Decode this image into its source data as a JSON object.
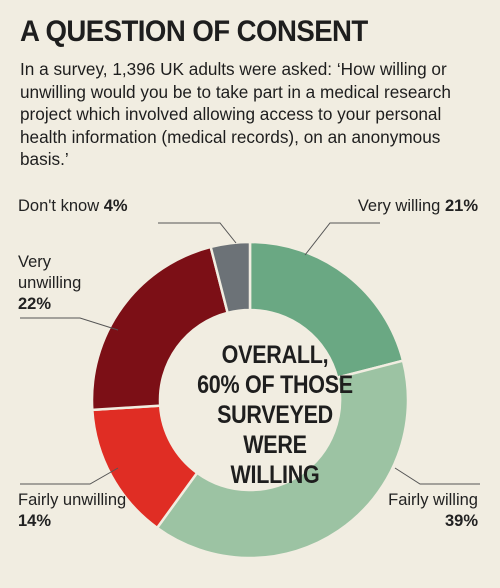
{
  "title": "A QUESTION OF CONSENT",
  "subtitle": "In a survey, 1,396 UK adults were asked: ‘How willing or unwilling would you be to take part in a medical research project which involved allowing access to your personal health information (medical records), on an anonymous basis.’",
  "center": {
    "line1": "OVERALL,",
    "line2": "60% OF THOSE",
    "line3": "SURVEYED WERE",
    "line4": "WILLING"
  },
  "labels": {
    "very_willing": {
      "text": "Very willing",
      "pct": "21%"
    },
    "fairly_willing": {
      "text": "Fairly willing",
      "pct": "39%"
    },
    "fairly_unwilling": {
      "text": "Fairly unwilling",
      "pct": "14%"
    },
    "very_unwilling": {
      "text": "Very unwilling",
      "pct": "22%"
    },
    "dont_know": {
      "text": "Don't know",
      "pct": "4%"
    }
  },
  "chart_data": {
    "type": "pie",
    "donut": true,
    "categories": [
      "Very willing",
      "Fairly willing",
      "Fairly unwilling",
      "Very unwilling",
      "Don't know"
    ],
    "values": [
      21,
      39,
      14,
      22,
      4
    ],
    "colors": [
      "#6aa883",
      "#9cc3a3",
      "#e02d24",
      "#7c0f16",
      "#6c7277"
    ]
  }
}
